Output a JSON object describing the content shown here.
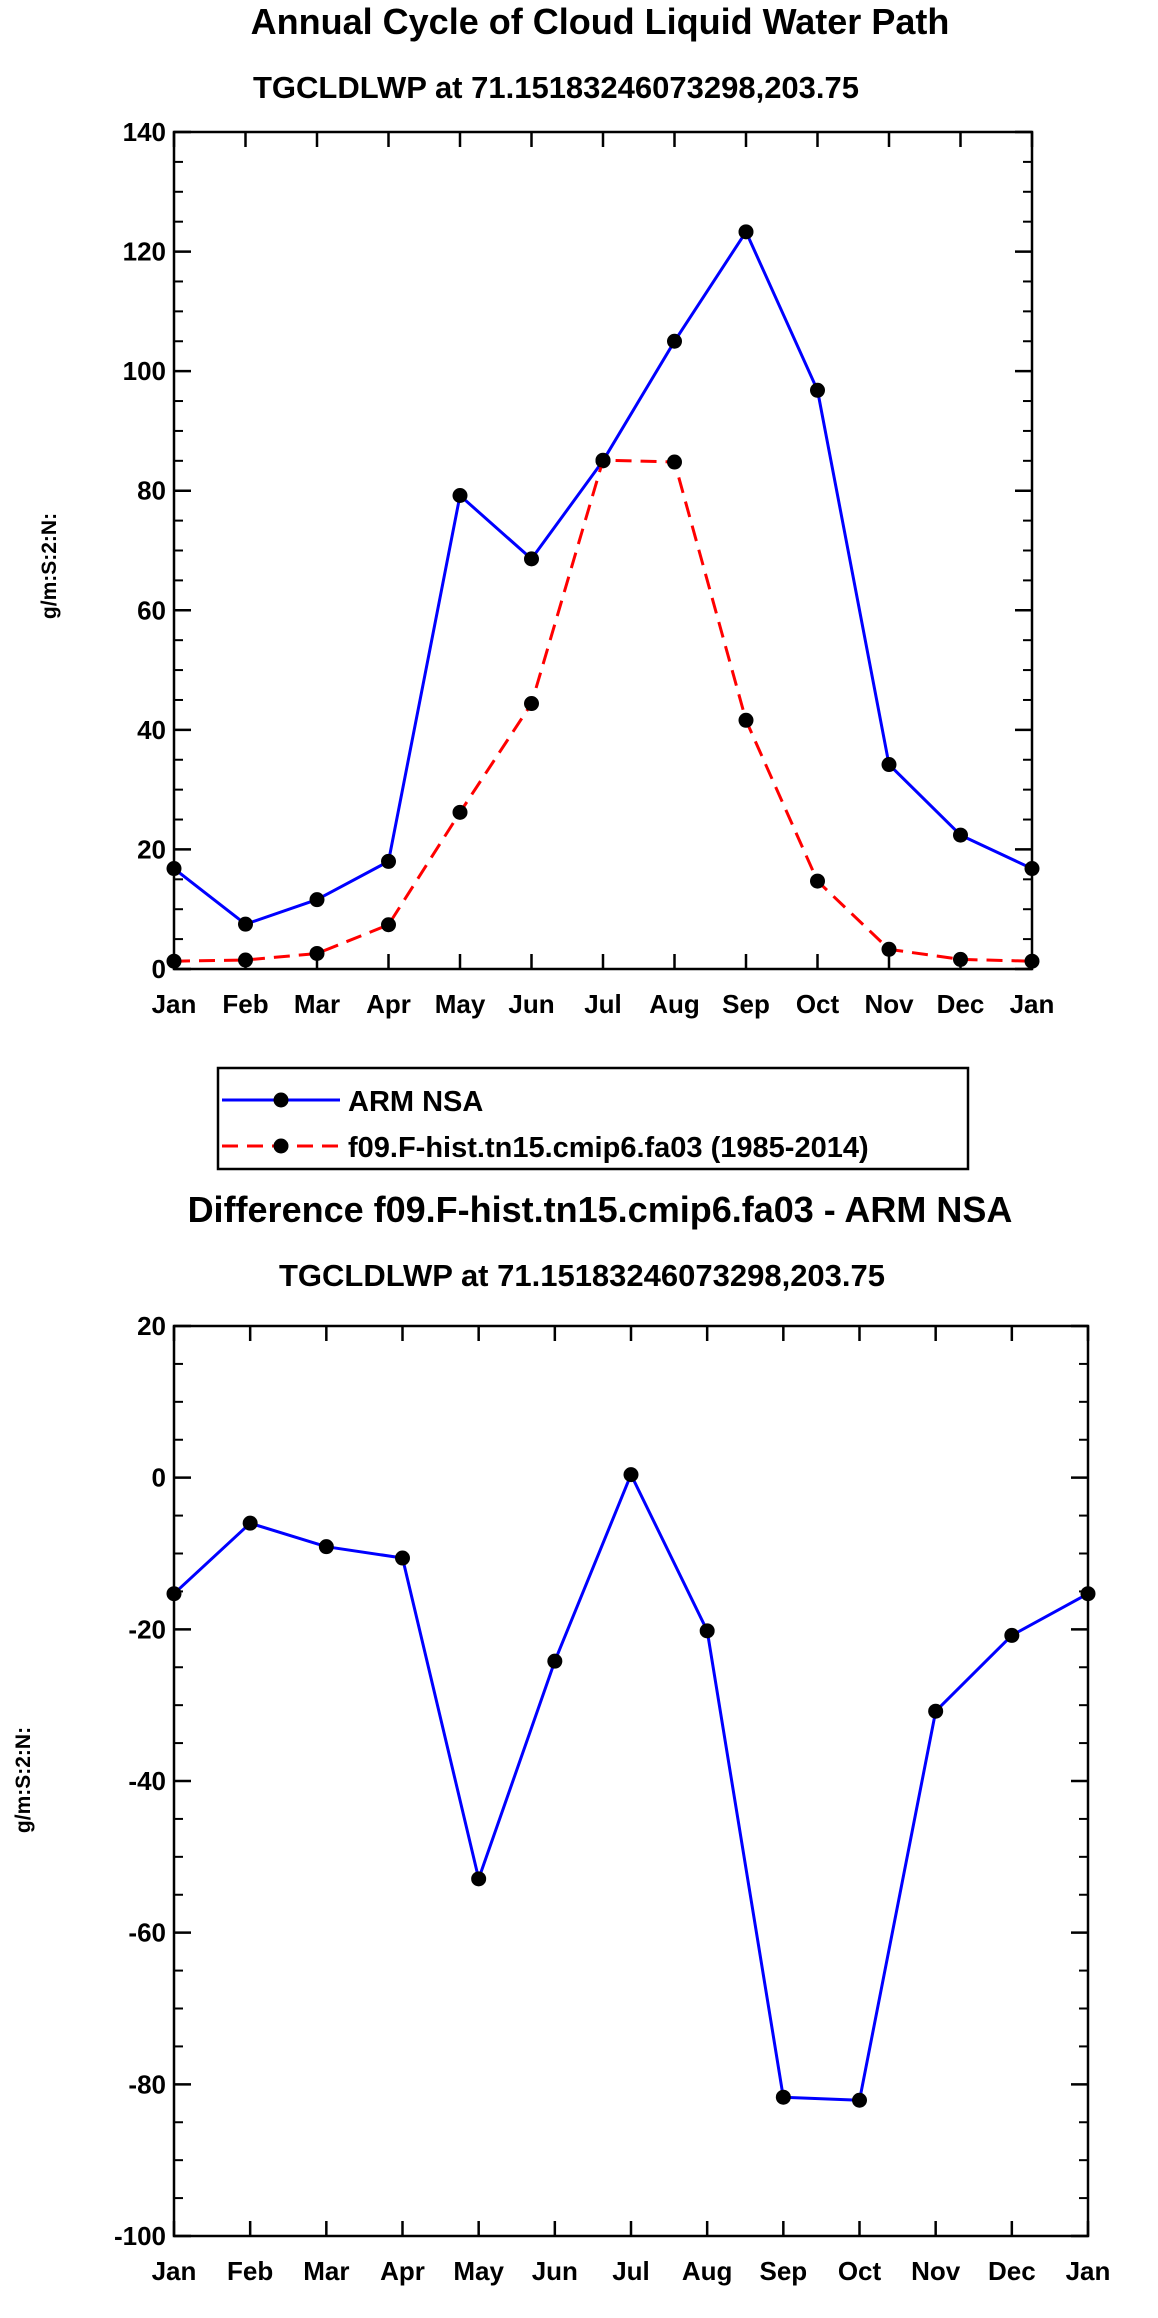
{
  "chart_data": [
    {
      "type": "line",
      "title": "Annual Cycle of Cloud Liquid Water Path",
      "subtitle": "TGCLDLWP at 71.15183246073298,203.75",
      "xlabel": "",
      "ylabel": "g/m:S:2:N:",
      "categories": [
        "Jan",
        "Feb",
        "Mar",
        "Apr",
        "May",
        "Jun",
        "Jul",
        "Aug",
        "Sep",
        "Oct",
        "Nov",
        "Dec",
        "Jan"
      ],
      "ylim": [
        0,
        140
      ],
      "yticks": [
        "0",
        "20",
        "40",
        "60",
        "80",
        "100",
        "120",
        "140"
      ],
      "series": [
        {
          "name": "ARM NSA",
          "color": "#0000ff",
          "style": "solid",
          "values": [
            16.8,
            7.5,
            11.6,
            18.0,
            79.2,
            68.6,
            85.0,
            105.0,
            123.3,
            96.8,
            34.2,
            22.4,
            16.8
          ]
        },
        {
          "name": "f09.F-hist.tn15.cmip6.fa03 (1985-2014)",
          "color": "#ff0000",
          "style": "dashed",
          "values": [
            1.3,
            1.5,
            2.6,
            7.4,
            26.2,
            44.4,
            85.1,
            84.8,
            41.6,
            14.7,
            3.3,
            1.6,
            1.3
          ]
        }
      ],
      "legend": [
        "ARM NSA",
        "f09.F-hist.tn15.cmip6.fa03 (1985-2014)"
      ]
    },
    {
      "type": "line",
      "title": "Difference f09.F-hist.tn15.cmip6.fa03 - ARM NSA",
      "subtitle": "TGCLDLWP at 71.15183246073298,203.75",
      "xlabel": "",
      "ylabel": "g/m:S:2:N:",
      "categories": [
        "Jan",
        "Feb",
        "Mar",
        "Apr",
        "May",
        "Jun",
        "Jul",
        "Aug",
        "Sep",
        "Oct",
        "Nov",
        "Dec",
        "Jan"
      ],
      "ylim": [
        -100,
        20
      ],
      "yticks": [
        "-100",
        "-80",
        "-60",
        "-40",
        "-20",
        "0",
        "20"
      ],
      "series": [
        {
          "name": "Difference",
          "color": "#0000ff",
          "style": "solid",
          "values": [
            -15.3,
            -6.0,
            -9.1,
            -10.6,
            -52.9,
            -24.2,
            0.4,
            -20.2,
            -81.7,
            -82.1,
            -30.8,
            -20.8,
            -15.3
          ]
        }
      ]
    }
  ]
}
